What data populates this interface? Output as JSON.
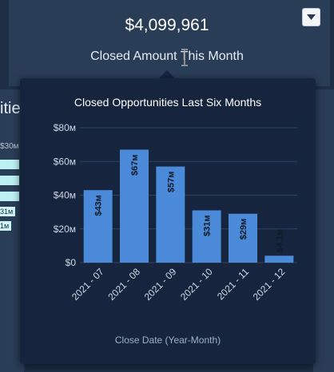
{
  "kpi": {
    "value": "$4,099,961",
    "label": "Closed Amount This Month"
  },
  "background": {
    "left_title": "itie",
    "left_tick": "$30м",
    "left_bar_labels": [
      "31м",
      "1м"
    ]
  },
  "icons": {
    "menu": "chevron-down-icon",
    "cursor": "text-cursor-icon"
  },
  "chart_data": {
    "type": "bar",
    "title": "Closed Opportunities Last Six Months",
    "xlabel": "Close Date (Year-Month)",
    "ylabel": "",
    "categories": [
      "2021 - 07",
      "2021 - 08",
      "2021 - 09",
      "2021 - 10",
      "2021 - 11",
      "2021 - 12"
    ],
    "values": [
      43,
      67,
      57,
      31,
      29,
      4.1
    ],
    "value_labels": [
      "$43м",
      "$67м",
      "$57м",
      "$31м",
      "$29м",
      "$4.1м"
    ],
    "y_ticks": [
      0,
      20,
      40,
      60,
      80
    ],
    "y_tick_labels": [
      "$0",
      "$20м",
      "$40м",
      "$60м",
      "$80м"
    ],
    "ylim": [
      0,
      80
    ],
    "grid": true,
    "colors": {
      "bar": "#4a8ad8",
      "grid": "#2c4262",
      "axis_text": "#cfd9e6"
    }
  }
}
